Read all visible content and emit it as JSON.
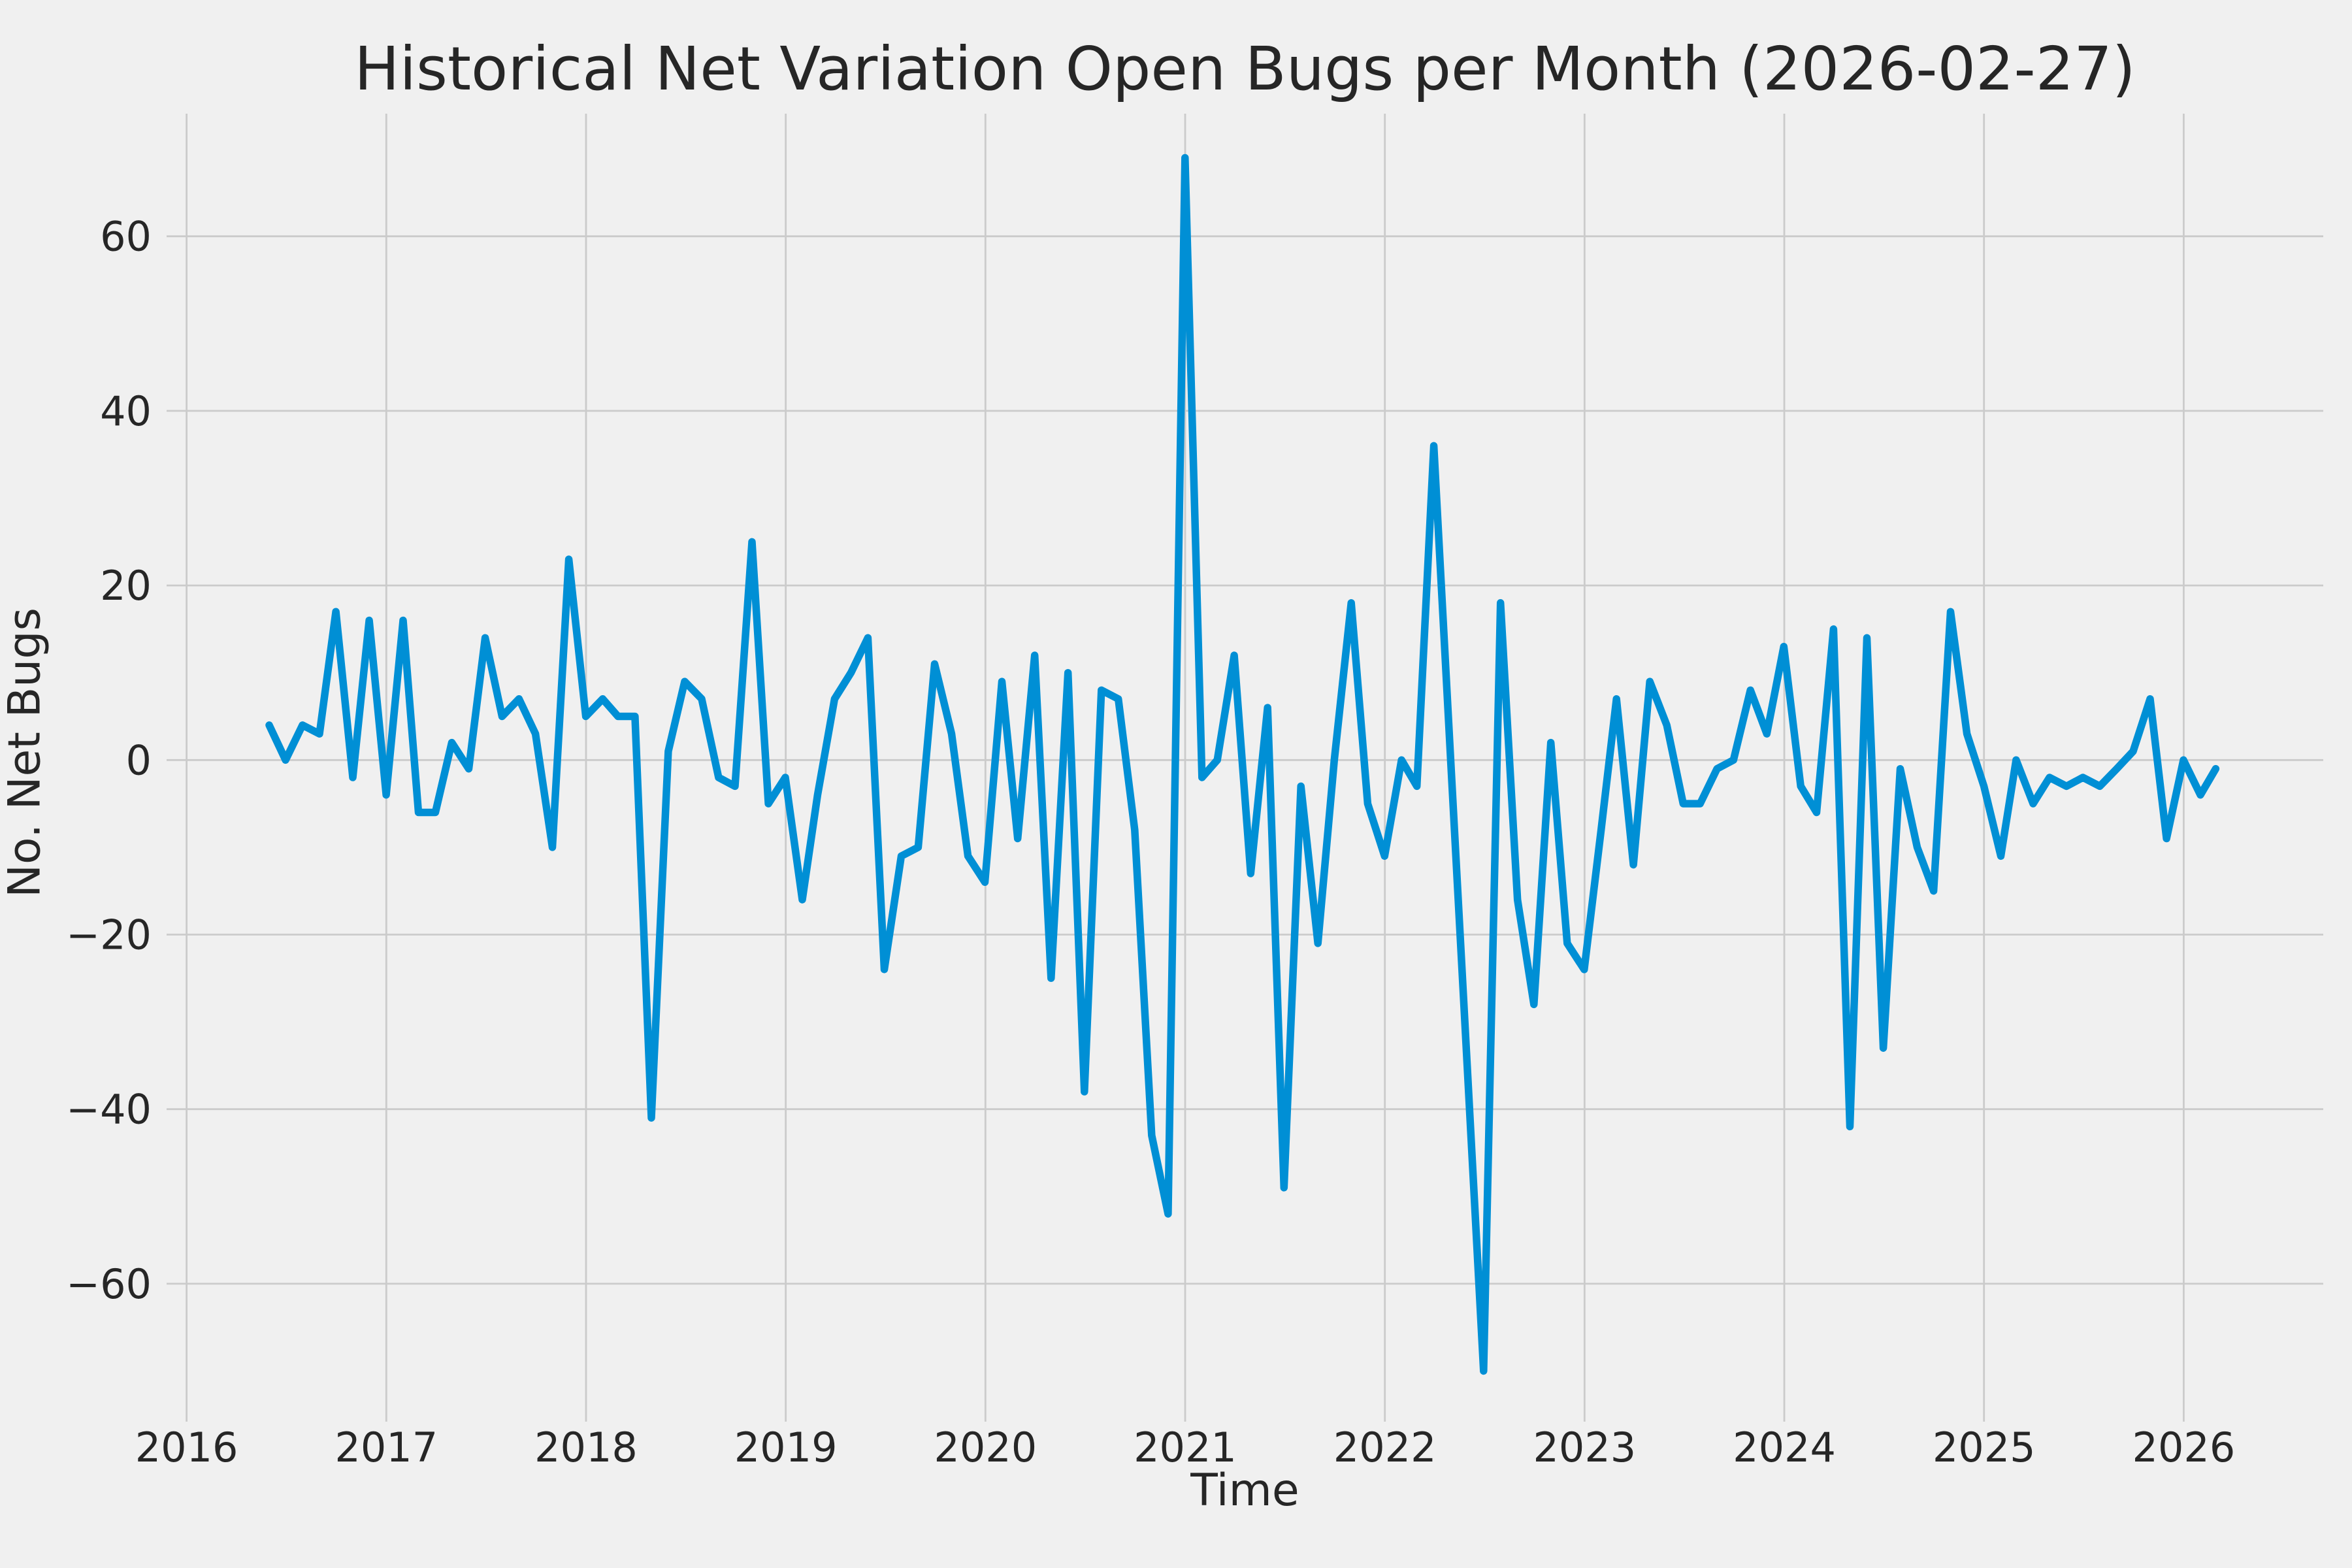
{
  "title": "Historical Net Variation Open Bugs per Month (2026-02-27)",
  "chart_data": {
    "type": "line",
    "title": "Historical Net Variation Open Bugs per Month (2026-02-27)",
    "xlabel": "Time",
    "ylabel": "No. Net Bugs",
    "legend": "none",
    "grid": true,
    "background_color": "#F0F0F0",
    "grid_color": "#CBCBCB",
    "line_color": "#008FD5",
    "text_color": "#262626",
    "x_tick_labels": [
      "2016",
      "2017",
      "2018",
      "2019",
      "2020",
      "2021",
      "2022",
      "2023",
      "2024",
      "2025",
      "2026"
    ],
    "y_ticks": [
      60,
      40,
      20,
      0,
      -20,
      -40,
      -60
    ],
    "ylim": [
      -73,
      74
    ],
    "xlim_years": [
      2015.9,
      2026.7
    ],
    "series_name": "Net variation of open bugs per month",
    "start_month": "2016-05",
    "end_month": "2026-02",
    "frequency": "monthly (month-end points)",
    "values": [
      4,
      0,
      4,
      3,
      17,
      -2,
      16,
      -4,
      16,
      -6,
      -6,
      2,
      -1,
      14,
      5,
      7,
      3,
      -10,
      23,
      5,
      7,
      5,
      5,
      -41,
      1,
      9,
      7,
      -2,
      -3,
      25,
      -5,
      -2,
      -16,
      -4,
      7,
      10,
      14,
      -24,
      -11,
      -10,
      11,
      3,
      -11,
      -14,
      9,
      -9,
      12,
      -25,
      10,
      -38,
      8,
      7,
      -8,
      -43,
      -52,
      69,
      -2,
      0,
      12,
      -13,
      6,
      -49,
      -3,
      -21,
      0,
      18,
      -5,
      -11,
      0,
      -3,
      36,
      1,
      -35,
      -70,
      18,
      -16,
      -28,
      2,
      -21,
      -24,
      -8,
      7,
      -12,
      9,
      4,
      -5,
      -5,
      -1,
      0,
      8,
      3,
      13,
      -3,
      -6,
      15,
      -42,
      14,
      -33,
      -1,
      -10,
      -15,
      17,
      3,
      -3,
      -11,
      0,
      -5,
      -2,
      -3,
      -2,
      -3,
      -1,
      1,
      7,
      -9,
      0,
      -4,
      -1
    ]
  }
}
